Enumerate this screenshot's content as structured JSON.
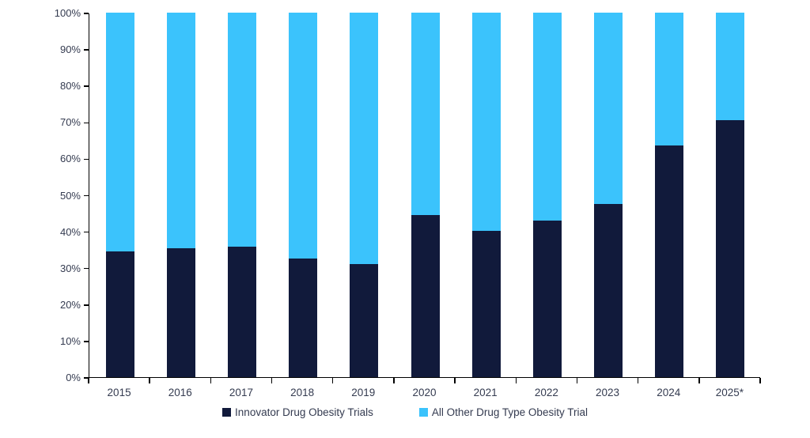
{
  "chart_data": {
    "type": "bar",
    "stacked": true,
    "stacked_total": 100,
    "title": "",
    "xlabel": "",
    "ylabel": "",
    "ylim": [
      0,
      100
    ],
    "ytick_step": 10,
    "ytick_suffix": "%",
    "grid": false,
    "legend_position": "bottom",
    "categories": [
      "2015",
      "2016",
      "2017",
      "2018",
      "2019",
      "2020",
      "2021",
      "2022",
      "2023",
      "2024",
      "2025*"
    ],
    "series": [
      {
        "name": "Innovator Drug Obesity Trials",
        "color": "#111a3b",
        "values": [
          34.5,
          35.4,
          35.7,
          32.5,
          31.0,
          44.4,
          40.1,
          42.9,
          47.5,
          63.5,
          70.6
        ]
      },
      {
        "name": "All Other Drug Type Obesity Trial",
        "color": "#3bc3fc",
        "values": [
          65.5,
          64.6,
          64.3,
          67.5,
          69.0,
          55.6,
          59.9,
          57.1,
          52.5,
          36.5,
          29.4
        ]
      }
    ]
  },
  "colors": {
    "axis": "#000000",
    "text": "#343b50",
    "background": "#ffffff"
  }
}
